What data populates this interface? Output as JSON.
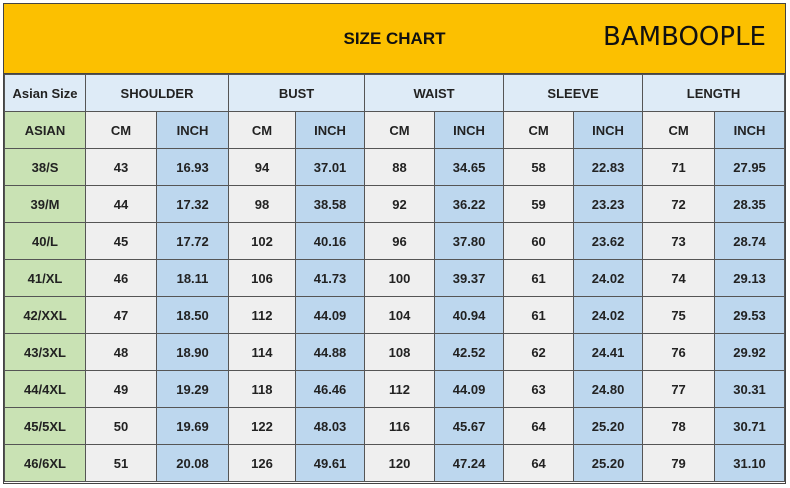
{
  "title": "SIZE CHART",
  "header": {
    "size_label": "Asian Size",
    "groups": [
      "SHOULDER",
      "BUST",
      "WAIST",
      "SLEEVE",
      "LENGTH"
    ]
  },
  "subheader": {
    "first": "ASIAN",
    "units": [
      "CM",
      "INCH"
    ]
  },
  "rows": [
    [
      "38/S",
      "43",
      "16.93",
      "94",
      "37.01",
      "88",
      "34.65",
      "58",
      "22.83",
      "71",
      "27.95"
    ],
    [
      "39/M",
      "44",
      "17.32",
      "98",
      "38.58",
      "92",
      "36.22",
      "59",
      "23.23",
      "72",
      "28.35"
    ],
    [
      "40/L",
      "45",
      "17.72",
      "102",
      "40.16",
      "96",
      "37.80",
      "60",
      "23.62",
      "73",
      "28.74"
    ],
    [
      "41/XL",
      "46",
      "18.11",
      "106",
      "41.73",
      "100",
      "39.37",
      "61",
      "24.02",
      "74",
      "29.13"
    ],
    [
      "42/XXL",
      "47",
      "18.50",
      "112",
      "44.09",
      "104",
      "40.94",
      "61",
      "24.02",
      "75",
      "29.53"
    ],
    [
      "43/3XL",
      "48",
      "18.90",
      "114",
      "44.88",
      "108",
      "42.52",
      "62",
      "24.41",
      "76",
      "29.92"
    ],
    [
      "44/4XL",
      "49",
      "19.29",
      "118",
      "46.46",
      "112",
      "44.09",
      "63",
      "24.80",
      "77",
      "30.31"
    ],
    [
      "45/5XL",
      "50",
      "19.69",
      "122",
      "48.03",
      "116",
      "45.67",
      "64",
      "25.20",
      "78",
      "30.71"
    ],
    [
      "46/6XL",
      "51",
      "20.08",
      "126",
      "49.61",
      "120",
      "47.24",
      "64",
      "25.20",
      "79",
      "31.10"
    ]
  ],
  "watermark": "BAMBOOPLE",
  "colors": {
    "title_bg": "#fcc000",
    "size_col": "#c9e2b4",
    "header": "#deebf7",
    "cm": "#efefef",
    "inch": "#bdd7ee"
  }
}
